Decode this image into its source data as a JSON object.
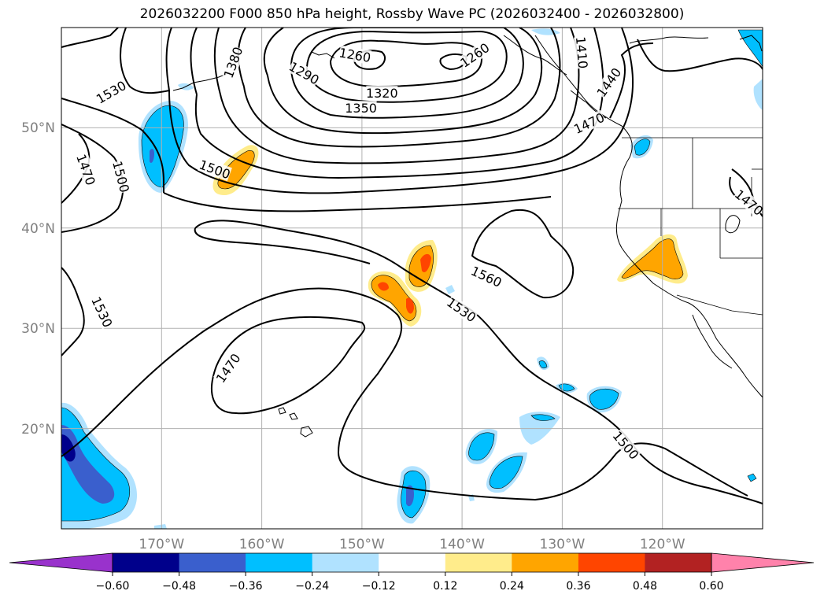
{
  "title": "2026032200 F000 850 hPa height, Rossby Wave PC (2026032400 - 2026032800)",
  "map": {
    "lat_labels": [
      "50°N",
      "40°N",
      "30°N",
      "20°N"
    ],
    "lon_labels": [
      "170°W",
      "160°W",
      "150°W",
      "140°W",
      "130°W",
      "120°W"
    ],
    "lon_range": [
      -180,
      -110
    ],
    "lat_range": [
      10,
      60
    ],
    "contour_interval_m": 30,
    "contour_labels": [
      {
        "text": "1290",
        "lon": -155.8,
        "lat": 55.4
      },
      {
        "text": "1260",
        "lon": -150.7,
        "lat": 57.2
      },
      {
        "text": "1260",
        "lon": -138.7,
        "lat": 57.2
      },
      {
        "text": "1380",
        "lon": -162.8,
        "lat": 56.5
      },
      {
        "text": "1320",
        "lon": -148.0,
        "lat": 53.4
      },
      {
        "text": "1350",
        "lon": -150.1,
        "lat": 51.9
      },
      {
        "text": "1530",
        "lon": -175.0,
        "lat": 53.5
      },
      {
        "text": "1410",
        "lon": -128.1,
        "lat": 57.5
      },
      {
        "text": "1440",
        "lon": -125.3,
        "lat": 54.5
      },
      {
        "text": "1470",
        "lon": -127.3,
        "lat": 50.4
      },
      {
        "text": "1470",
        "lon": -177.6,
        "lat": 45.8
      },
      {
        "text": "1500",
        "lon": -174.1,
        "lat": 45.1
      },
      {
        "text": "1500",
        "lon": -164.7,
        "lat": 45.8
      },
      {
        "text": "1470",
        "lon": -111.4,
        "lat": 42.5
      },
      {
        "text": "1560",
        "lon": -137.6,
        "lat": 35.1
      },
      {
        "text": "1530",
        "lon": -140.1,
        "lat": 31.8
      },
      {
        "text": "1530",
        "lon": -176.0,
        "lat": 31.6
      },
      {
        "text": "1470",
        "lon": -163.3,
        "lat": 26.0
      },
      {
        "text": "1500",
        "lon": -123.7,
        "lat": 18.3
      }
    ]
  },
  "colorbar": {
    "ticks": [
      "−0.60",
      "−0.48",
      "−0.36",
      "−0.24",
      "−0.12",
      "0.12",
      "0.24",
      "0.36",
      "0.48",
      "0.60"
    ],
    "colors": [
      "#9932cc",
      "#00008b",
      "#3a5fcd",
      "#00bfff",
      "#b0e2ff",
      "#ffffff",
      "#ffec8b",
      "#ffa500",
      "#ff4500",
      "#b22222",
      "#ff82ab"
    ]
  },
  "shading": {
    "colors": {
      "neg1": "#b0e2ff",
      "neg2": "#00bfff",
      "neg3": "#3a5fcd",
      "neg4": "#00008b",
      "pos1": "#ffec8b",
      "pos2": "#ffa500",
      "pos3": "#ff4500"
    }
  }
}
